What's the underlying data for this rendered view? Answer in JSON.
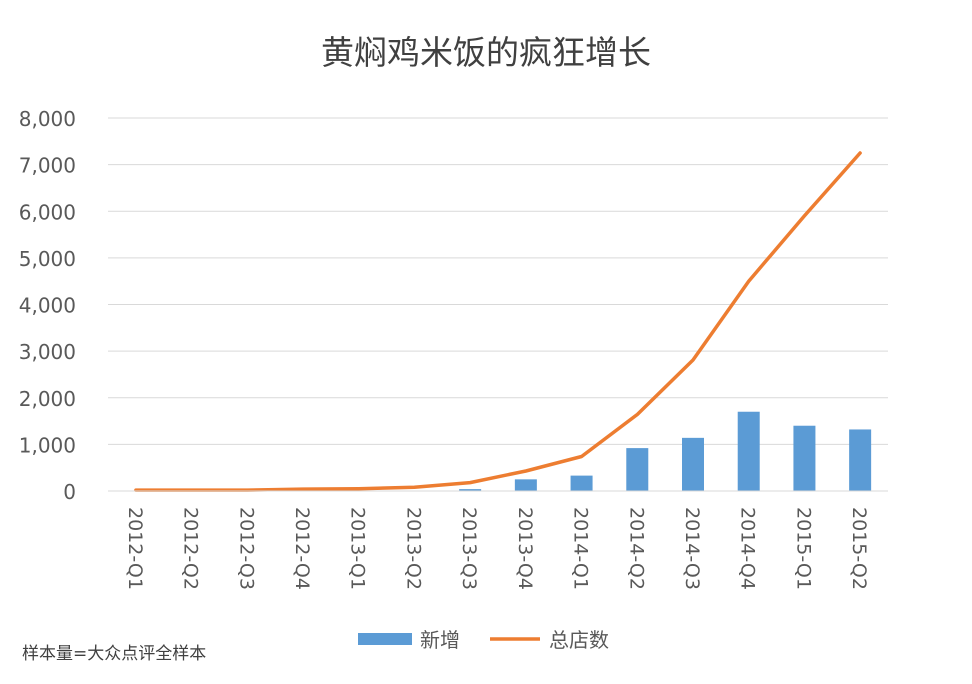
{
  "chart_data": {
    "type": "bar",
    "title": "黄焖鸡米饭的疯狂增长",
    "xlabel": "",
    "ylabel": "",
    "categories": [
      "2012-Q1",
      "2012-Q2",
      "2012-Q3",
      "2012-Q4",
      "2013-Q1",
      "2013-Q2",
      "2013-Q3",
      "2013-Q4",
      "2014-Q1",
      "2014-Q2",
      "2014-Q3",
      "2014-Q4",
      "2015-Q1",
      "2015-Q2"
    ],
    "ylim": [
      0,
      8000
    ],
    "yticks": [
      "0",
      "1,000",
      "2,000",
      "3,000",
      "4,000",
      "5,000",
      "6,000",
      "7,000",
      "8,000"
    ],
    "grid": true,
    "legend_position": "bottom",
    "series": [
      {
        "name": "新增",
        "type": "bar",
        "color": "#5B9BD5",
        "values": [
          0,
          0,
          0,
          0,
          0,
          0,
          40,
          250,
          330,
          920,
          1140,
          1700,
          1400,
          1320
        ]
      },
      {
        "name": "总店数",
        "type": "line",
        "color": "#ED7D31",
        "values": [
          20,
          20,
          20,
          40,
          50,
          80,
          180,
          430,
          740,
          1640,
          2810,
          4500,
          5900,
          7250
        ]
      }
    ],
    "source_note": "样本量=大众点评全样本"
  }
}
